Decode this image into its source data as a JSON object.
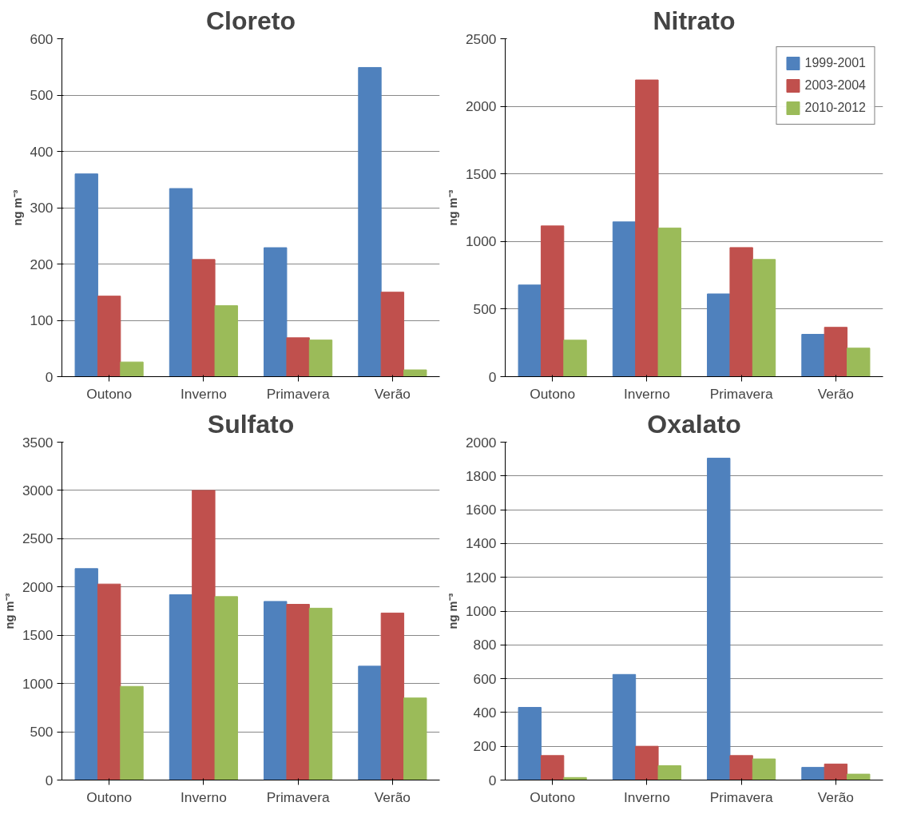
{
  "chart_data": [
    {
      "type": "bar",
      "title": "Cloreto",
      "ylabel": "ng m⁻³",
      "categories": [
        "Outono",
        "Inverno",
        "Primavera",
        "Verão"
      ],
      "ylim": [
        0,
        600
      ],
      "yticks": [
        0,
        100,
        200,
        300,
        400,
        500,
        600
      ],
      "grid": "y",
      "legend": false,
      "series": [
        {
          "color": "#4f81bd",
          "values": [
            360,
            334,
            229,
            549
          ]
        },
        {
          "color": "#c0504d",
          "values": [
            143,
            208,
            69,
            150
          ]
        },
        {
          "color": "#9bbb59",
          "values": [
            26,
            126,
            65,
            12
          ]
        }
      ]
    },
    {
      "type": "bar",
      "title": "Nitrato",
      "ylabel": "ng m⁻³",
      "categories": [
        "Outono",
        "Inverno",
        "Primavera",
        "Verão"
      ],
      "ylim": [
        0,
        2500
      ],
      "yticks": [
        0,
        500,
        1000,
        1500,
        2000,
        2500
      ],
      "grid": "y",
      "legend": "top right",
      "series": [
        {
          "name": "1999-2001",
          "color": "#4f81bd",
          "values": [
            678,
            1145,
            612,
            313
          ]
        },
        {
          "name": "2003-2004",
          "color": "#c0504d",
          "values": [
            1115,
            2195,
            955,
            365
          ]
        },
        {
          "name": "2010-2012",
          "color": "#9bbb59",
          "values": [
            270,
            1100,
            867,
            211
          ]
        }
      ]
    },
    {
      "type": "bar",
      "title": "Sulfato",
      "ylabel": "ng m⁻³",
      "categories": [
        "Outono",
        "Inverno",
        "Primavera",
        "Verão"
      ],
      "ylim": [
        0,
        3500
      ],
      "yticks": [
        0,
        500,
        1000,
        1500,
        2000,
        2500,
        3000,
        3500
      ],
      "grid": "y",
      "legend": false,
      "series": [
        {
          "color": "#4f81bd",
          "values": [
            2190,
            1920,
            1850,
            1180
          ]
        },
        {
          "color": "#c0504d",
          "values": [
            2030,
            3000,
            1820,
            1730
          ]
        },
        {
          "color": "#9bbb59",
          "values": [
            970,
            1900,
            1780,
            850
          ]
        }
      ]
    },
    {
      "type": "bar",
      "title": "Oxalato",
      "ylabel": "ng m⁻³",
      "categories": [
        "Outono",
        "Inverno",
        "Primavera",
        "Verão"
      ],
      "ylim": [
        0,
        2000
      ],
      "yticks": [
        0,
        200,
        400,
        600,
        800,
        1000,
        1200,
        1400,
        1600,
        1800,
        2000
      ],
      "grid": "y",
      "legend": false,
      "series": [
        {
          "color": "#4f81bd",
          "values": [
            430,
            625,
            1905,
            75
          ]
        },
        {
          "color": "#c0504d",
          "values": [
            145,
            200,
            145,
            95
          ]
        },
        {
          "color": "#9bbb59",
          "values": [
            15,
            85,
            125,
            35
          ]
        }
      ]
    }
  ]
}
